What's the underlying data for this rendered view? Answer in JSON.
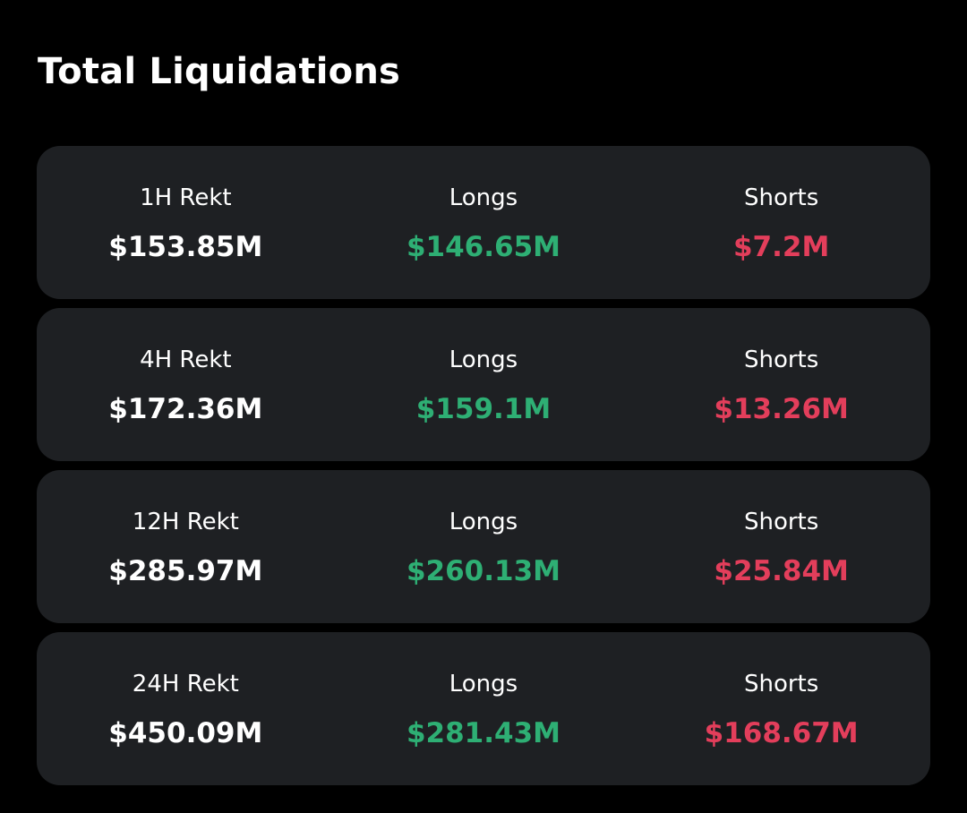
{
  "title": "Total Liquidations",
  "colors": {
    "background": "#000000",
    "card": "#1e2023",
    "text": "#ffffff",
    "longs": "#2eaf74",
    "shorts": "#e33e5b"
  },
  "cards": [
    {
      "period_label": "1H Rekt",
      "total": "$153.85M",
      "longs_label": "Longs",
      "longs": "$146.65M",
      "shorts_label": "Shorts",
      "shorts": "$7.2M"
    },
    {
      "period_label": "4H Rekt",
      "total": "$172.36M",
      "longs_label": "Longs",
      "longs": "$159.1M",
      "shorts_label": "Shorts",
      "shorts": "$13.26M"
    },
    {
      "period_label": "12H Rekt",
      "total": "$285.97M",
      "longs_label": "Longs",
      "longs": "$260.13M",
      "shorts_label": "Shorts",
      "shorts": "$25.84M"
    },
    {
      "period_label": "24H Rekt",
      "total": "$450.09M",
      "longs_label": "Longs",
      "longs": "$281.43M",
      "shorts_label": "Shorts",
      "shorts": "$168.67M"
    }
  ]
}
